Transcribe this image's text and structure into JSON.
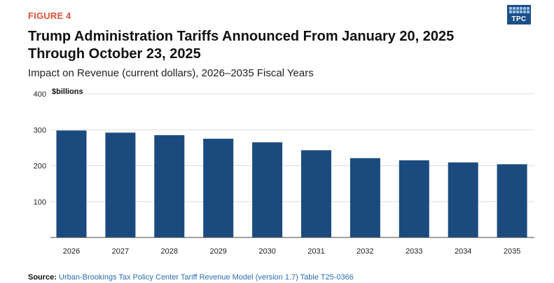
{
  "header": {
    "figure_label": "FIGURE 4",
    "title": "Trump Administration Tariffs Announced From January 20, 2025 Through October 23, 2025",
    "subtitle": "Impact on Revenue (current dollars), 2026–2035 Fiscal Years"
  },
  "logo": {
    "text": "TPC",
    "color": "#1b4f88",
    "accent": "#9cc0e3"
  },
  "source": {
    "label": "Source:",
    "text": "Urban-Brookings Tax Policy Center Tariff Revenue Model (version 1.7) Table T25-0366"
  },
  "chart_data": {
    "type": "bar",
    "title": "Trump Administration Tariffs Announced From January 20, 2025 Through October 23, 2025",
    "subtitle": "Impact on Revenue (current dollars), 2026–2035 Fiscal Years",
    "unit_label": "$billions",
    "xlabel": "",
    "ylabel": "$billions",
    "categories": [
      "2026",
      "2027",
      "2028",
      "2029",
      "2030",
      "2031",
      "2032",
      "2033",
      "2034",
      "2035"
    ],
    "values": [
      298,
      292,
      285,
      275,
      265,
      243,
      221,
      215,
      209,
      204
    ],
    "ylim": [
      0,
      400
    ],
    "yticks": [
      100,
      200,
      300,
      400
    ],
    "grid": true,
    "bar_color": "#1b4b7e",
    "grid_color": "#dddddd"
  }
}
